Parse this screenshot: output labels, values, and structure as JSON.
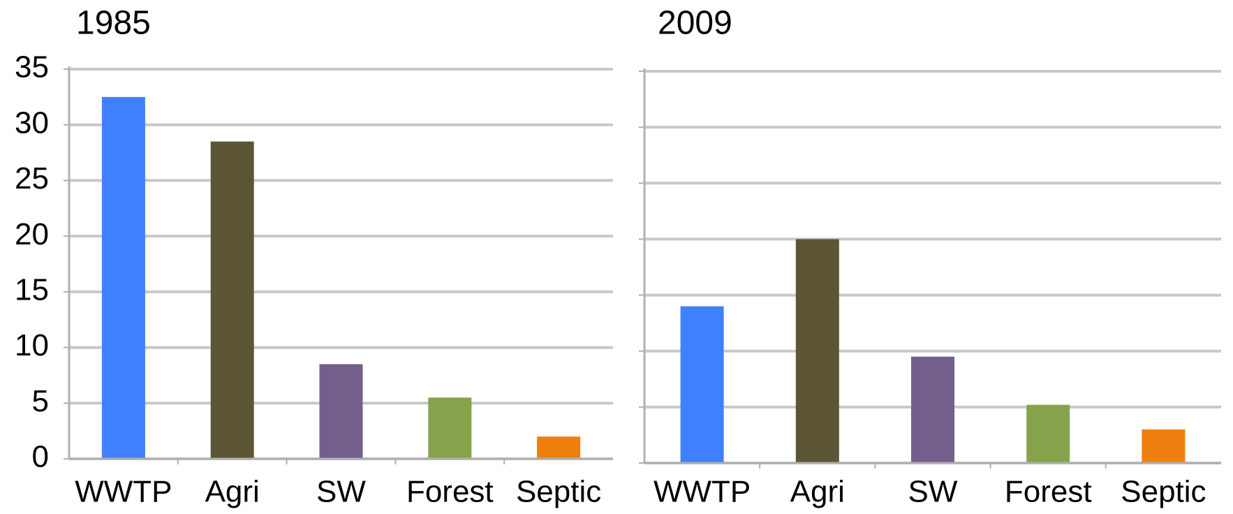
{
  "chart_data": [
    {
      "type": "bar",
      "title": "1985",
      "categories": [
        "WWTP",
        "Agri",
        "SW",
        "Forest",
        "Septic"
      ],
      "values": [
        32.5,
        28.5,
        8.5,
        5.5,
        2
      ],
      "colors": [
        "#4080ff",
        "#5c5636",
        "#735e8c",
        "#86a34c",
        "#ef7f0e"
      ],
      "ylim": [
        0,
        35
      ],
      "yticks": [
        0,
        5,
        10,
        15,
        20,
        25,
        30,
        35
      ],
      "grid": true,
      "show_tick_labels": true
    },
    {
      "type": "bar",
      "title": "2009",
      "categories": [
        "WWTP",
        "Agri",
        "SW",
        "Forest",
        "Septic"
      ],
      "values": [
        14,
        20,
        9.5,
        5.2,
        3
      ],
      "colors": [
        "#4080ff",
        "#5c5636",
        "#735e8c",
        "#86a34c",
        "#ef7f0e"
      ],
      "ylim": [
        0,
        35
      ],
      "yticks": [
        0,
        5,
        10,
        15,
        20,
        25,
        30,
        35
      ],
      "grid": true,
      "show_tick_labels": false
    }
  ]
}
